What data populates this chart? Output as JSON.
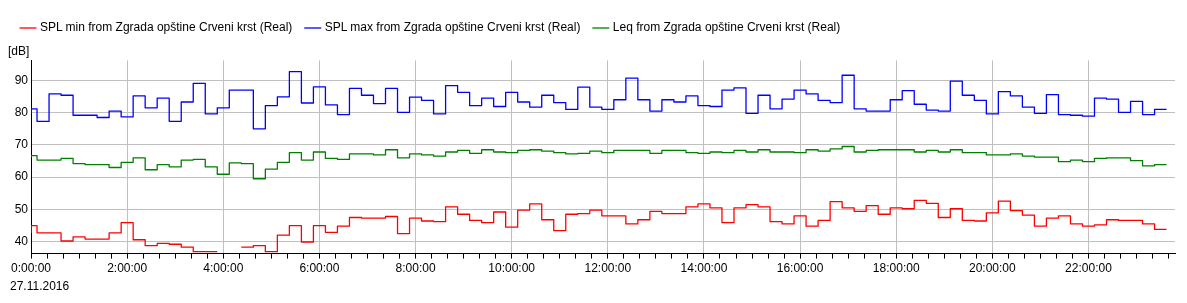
{
  "chart_data": {
    "type": "step",
    "ylabel": "[dB]",
    "annotations": [
      "27.11.2016"
    ],
    "x": [
      0,
      0.125,
      0.375,
      0.625,
      0.875,
      1.125,
      1.375,
      1.625,
      1.875,
      2.125,
      2.375,
      2.625,
      2.875,
      3.125,
      3.375,
      3.625,
      3.875,
      4.125,
      4.375,
      4.625,
      4.875,
      5.125,
      5.375,
      5.625,
      5.875,
      6.125,
      6.375,
      6.625,
      6.875,
      7.125,
      7.375,
      7.625,
      7.875,
      8.125,
      8.375,
      8.625,
      8.875,
      9.125,
      9.375,
      9.625,
      9.875,
      10.125,
      10.375,
      10.625,
      10.875,
      11.125,
      11.375,
      11.625,
      11.875,
      12.125,
      12.375,
      12.625,
      12.875,
      13.125,
      13.375,
      13.625,
      13.875,
      14.125,
      14.375,
      14.625,
      14.875,
      15.125,
      15.375,
      15.625,
      15.875,
      16.125,
      16.375,
      16.625,
      16.875,
      17.125,
      17.375,
      17.625,
      17.875,
      18.125,
      18.375,
      18.625,
      18.875,
      19.125,
      19.375,
      19.625,
      19.875,
      20.125,
      20.375,
      20.625,
      20.875,
      21.125,
      21.375,
      21.625,
      21.875,
      22.125,
      22.375,
      22.625,
      22.875,
      23.125,
      23.375,
      23.625
    ],
    "series": [
      {
        "name": "SPL min from Zgrada opštine Crveni krst (Real)",
        "color": "#ff0000",
        "values": [
          42.7,
          45,
          42.7,
          42.7,
          40.2,
          41.5,
          40.8,
          40.8,
          42.7,
          45.9,
          40.6,
          38.8,
          39.5,
          39.2,
          38.3,
          36.9,
          36.9,
          null,
          38.3,
          38.3,
          38.8,
          36.9,
          42,
          45,
          39.9,
          45,
          42.9,
          44.8,
          47.5,
          47.3,
          47.3,
          47.8,
          42.5,
          47.3,
          46.4,
          46.2,
          50.8,
          48.5,
          46.6,
          45.9,
          49.2,
          44.5,
          49.8,
          51.7,
          46.8,
          43.4,
          48.5,
          48.7,
          49.8,
          48,
          48,
          45.5,
          46.8,
          49.4,
          48.7,
          48.7,
          50.8,
          51.7,
          50.5,
          45.9,
          50.5,
          51.5,
          50.8,
          46.2,
          45.5,
          48,
          44.8,
          46.6,
          52.4,
          50.5,
          49.4,
          51.2,
          48.5,
          50.5,
          50.2,
          52.8,
          51.9,
          47.5,
          50.2,
          46.6,
          46.4,
          48.9,
          52.6,
          49.6,
          48.2,
          44.8,
          47.3,
          48,
          45.5,
          44.8,
          45.2,
          46.8,
          46.6,
          46.6,
          45.5,
          43.8
        ]
      },
      {
        "name": "SPL max from Zgrada opštine Crveni krst (Real)",
        "color": "#0000ff",
        "values": [
          79.6,
          81.2,
          77.3,
          85.8,
          85.4,
          79.2,
          79.2,
          78.5,
          80.5,
          78.7,
          85.2,
          81.5,
          84.5,
          77.3,
          83.3,
          89.1,
          79.6,
          81.5,
          87,
          87,
          75,
          82.2,
          84.9,
          92.7,
          83,
          88,
          82.4,
          79.4,
          87.5,
          85.4,
          82.8,
          87.5,
          80.1,
          84.8,
          83.8,
          79.6,
          88.4,
          86.3,
          82.2,
          84.5,
          81.9,
          86.3,
          83.3,
          81.7,
          85.4,
          83.1,
          81,
          87.9,
          81.7,
          81,
          84,
          90.7,
          84,
          80.5,
          84,
          83.3,
          85.2,
          82.2,
          81.9,
          87,
          87.7,
          79.8,
          85.4,
          81.2,
          84.2,
          87,
          85.8,
          83.8,
          83.1,
          91.6,
          81.2,
          80.5,
          80.5,
          84,
          86.8,
          82.6,
          80.8,
          80.5,
          89.8,
          85.4,
          83.8,
          79.6,
          86.5,
          85.2,
          81.7,
          79.8,
          85.6,
          79.4,
          79.2,
          78.9,
          84.5,
          84.2,
          80.1,
          83.5,
          79.4,
          81
        ]
      },
      {
        "name": "Leq from Zgrada opštine Crveni krst (Real)",
        "color": "#008000",
        "values": [
          66.2,
          66.7,
          65.3,
          65.3,
          65.8,
          64.2,
          63.9,
          63.9,
          63,
          64.6,
          66,
          62.3,
          63.9,
          63.2,
          65.3,
          65.5,
          63.2,
          60.9,
          64.4,
          64.2,
          59.5,
          62.5,
          64.6,
          67.6,
          65.3,
          67.8,
          65.8,
          65.5,
          67.2,
          67.2,
          66.9,
          68.5,
          66,
          67.2,
          66.9,
          66.5,
          67.8,
          68.3,
          67.4,
          68.5,
          67.8,
          67.6,
          68.3,
          68.5,
          68.1,
          67.6,
          67.2,
          67.4,
          68.1,
          67.6,
          68.3,
          68.3,
          68.3,
          67.4,
          68.3,
          68.3,
          67.6,
          67.4,
          67.8,
          67.6,
          68.3,
          67.8,
          68.5,
          67.8,
          67.8,
          67.6,
          68.5,
          68.1,
          68.8,
          69.5,
          67.8,
          68.3,
          68.5,
          68.5,
          68.5,
          67.8,
          68.3,
          67.8,
          68.5,
          67.6,
          67.6,
          66.9,
          66.9,
          67.2,
          66.5,
          66.2,
          66.2,
          64.8,
          65.3,
          64.8,
          65.8,
          66,
          66,
          65.1,
          63.5,
          63.9
        ]
      }
    ],
    "xlim": [
      0,
      23.8
    ],
    "ylim": [
      36.3,
      96.2
    ],
    "yticks": [
      40,
      50,
      60,
      70,
      80,
      90
    ],
    "xticks": [
      {
        "value": 0,
        "label": "0:00:00"
      },
      {
        "value": 0.333,
        "label": null
      },
      {
        "value": 0.667,
        "label": null
      },
      {
        "value": 1,
        "label": null
      },
      {
        "value": 1.333,
        "label": null
      },
      {
        "value": 1.667,
        "label": null
      },
      {
        "value": 2,
        "label": "2:00:00"
      },
      {
        "value": 2.333,
        "label": null
      },
      {
        "value": 2.667,
        "label": null
      },
      {
        "value": 3,
        "label": null
      },
      {
        "value": 3.333,
        "label": null
      },
      {
        "value": 3.667,
        "label": null
      },
      {
        "value": 4,
        "label": "4:00:00"
      },
      {
        "value": 4.333,
        "label": null
      },
      {
        "value": 4.667,
        "label": null
      },
      {
        "value": 5,
        "label": null
      },
      {
        "value": 5.333,
        "label": null
      },
      {
        "value": 5.667,
        "label": null
      },
      {
        "value": 6,
        "label": "6:00:00"
      },
      {
        "value": 6.333,
        "label": null
      },
      {
        "value": 6.667,
        "label": null
      },
      {
        "value": 7,
        "label": null
      },
      {
        "value": 7.333,
        "label": null
      },
      {
        "value": 7.667,
        "label": null
      },
      {
        "value": 8,
        "label": "8:00:00"
      },
      {
        "value": 8.333,
        "label": null
      },
      {
        "value": 8.667,
        "label": null
      },
      {
        "value": 9,
        "label": null
      },
      {
        "value": 9.333,
        "label": null
      },
      {
        "value": 9.667,
        "label": null
      },
      {
        "value": 10,
        "label": "10:00:00"
      },
      {
        "value": 10.333,
        "label": null
      },
      {
        "value": 10.667,
        "label": null
      },
      {
        "value": 11,
        "label": null
      },
      {
        "value": 11.333,
        "label": null
      },
      {
        "value": 11.667,
        "label": null
      },
      {
        "value": 12,
        "label": "12:00:00"
      },
      {
        "value": 12.333,
        "label": null
      },
      {
        "value": 12.667,
        "label": null
      },
      {
        "value": 13,
        "label": null
      },
      {
        "value": 13.333,
        "label": null
      },
      {
        "value": 13.667,
        "label": null
      },
      {
        "value": 14,
        "label": "14:00:00"
      },
      {
        "value": 14.333,
        "label": null
      },
      {
        "value": 14.667,
        "label": null
      },
      {
        "value": 15,
        "label": null
      },
      {
        "value": 15.333,
        "label": null
      },
      {
        "value": 15.667,
        "label": null
      },
      {
        "value": 16,
        "label": "16:00:00"
      },
      {
        "value": 16.333,
        "label": null
      },
      {
        "value": 16.667,
        "label": null
      },
      {
        "value": 17,
        "label": null
      },
      {
        "value": 17.333,
        "label": null
      },
      {
        "value": 17.667,
        "label": null
      },
      {
        "value": 18,
        "label": "18:00:00"
      },
      {
        "value": 18.333,
        "label": null
      },
      {
        "value": 18.667,
        "label": null
      },
      {
        "value": 19,
        "label": null
      },
      {
        "value": 19.333,
        "label": null
      },
      {
        "value": 19.667,
        "label": null
      },
      {
        "value": 20,
        "label": "20:00:00"
      },
      {
        "value": 20.333,
        "label": null
      },
      {
        "value": 20.667,
        "label": null
      },
      {
        "value": 21,
        "label": null
      },
      {
        "value": 21.333,
        "label": null
      },
      {
        "value": 21.667,
        "label": null
      },
      {
        "value": 22,
        "label": "22:00:00"
      },
      {
        "value": 22.333,
        "label": null
      },
      {
        "value": 22.667,
        "label": null
      },
      {
        "value": 23,
        "label": null
      },
      {
        "value": 23.333,
        "label": null
      },
      {
        "value": 23.667,
        "label": null
      }
    ],
    "grid": true,
    "legend": "top left"
  }
}
